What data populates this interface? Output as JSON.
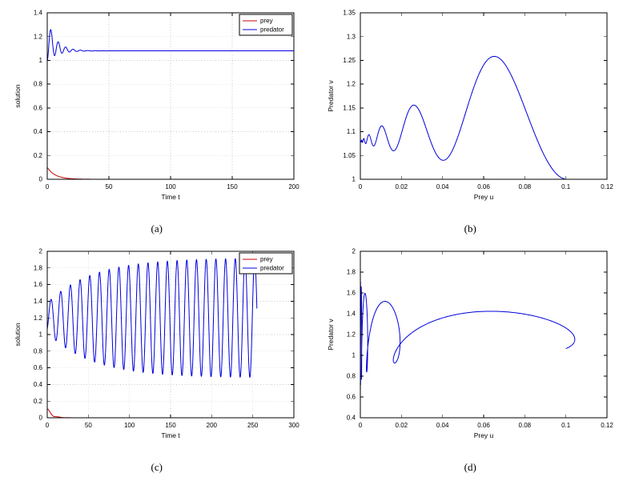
{
  "page": {
    "background": "#ffffff"
  },
  "colors": {
    "prey": "#cc0000",
    "predator": "#0000dd",
    "axis": "#000000",
    "grid": "#c8c8c8"
  },
  "chart_data": [
    {
      "type": "line",
      "caption": "(a)",
      "xlabel": "Time t",
      "ylabel": "solution",
      "xlim": [
        0,
        200
      ],
      "ylim": [
        0,
        1.4
      ],
      "xticks": [
        0,
        50,
        100,
        150,
        200
      ],
      "xtick_labels": [
        "0",
        "50",
        "100",
        "150",
        "200"
      ],
      "yticks": [
        0,
        0.2,
        0.4,
        0.6,
        0.8,
        1,
        1.2,
        1.4
      ],
      "ytick_labels": [
        "0",
        "0.2",
        "0.4",
        "0.6",
        "0.8",
        "1",
        "1.2",
        "1.4"
      ],
      "grid": true,
      "legend": {
        "position": "top-right",
        "entries": [
          {
            "label": "prey",
            "color_key": "prey"
          },
          {
            "label": "predator",
            "color_key": "predator"
          }
        ]
      },
      "series": [
        {
          "name": "prey",
          "color_key": "prey",
          "t_range": [
            0,
            200
          ],
          "samples": 600,
          "y_fn": {
            "type": "exp_osc_decay",
            "a0": 0.1,
            "tau": 6.5,
            "m": 0,
            "T": 6,
            "phi": 0
          },
          "description": "prey u(t) decays from 0.1 to ~0 by t=30 and stays at 0"
        },
        {
          "name": "predator",
          "color_key": "predator",
          "t_range": [
            0,
            200
          ],
          "samples": 2600,
          "y_fn": {
            "type": "env_osc",
            "base": 1.08,
            "cU": 0.2696,
            "tauU": 7.03,
            "cL": 0.08,
            "tauL": 8.66,
            "T": 6,
            "phi": -1.5708
          },
          "description": "predator v(t): damped oscillation starting at 1.0, peaks 1.26/1.155/1.11, dips 1.04/1.06, settles at 1.08"
        }
      ]
    },
    {
      "type": "line",
      "caption": "(b)",
      "xlabel": "Prey u",
      "ylabel": "Predator v",
      "xlim": [
        0,
        0.12
      ],
      "ylim": [
        1,
        1.35
      ],
      "xticks": [
        0,
        0.02,
        0.04,
        0.06,
        0.08,
        0.1,
        0.12
      ],
      "xtick_labels": [
        "0",
        "0.02",
        "0.04",
        "0.06",
        "0.08",
        "0.1",
        "0.12"
      ],
      "yticks": [
        1,
        1.05,
        1.1,
        1.15,
        1.2,
        1.25,
        1.3,
        1.35
      ],
      "ytick_labels": [
        "1",
        "1.05",
        "1.1",
        "1.15",
        "1.2",
        "1.25",
        "1.3",
        "1.35"
      ],
      "grid": false,
      "legend": null,
      "series": [
        {
          "name": "trajectory",
          "color_key": "predator",
          "t_range": [
            0,
            60
          ],
          "samples": 2400,
          "x_fn": {
            "type": "exp_osc_decay",
            "a0": 0.1,
            "tau": 6.55,
            "m": 0,
            "T": 6,
            "phi": 0
          },
          "y_fn": {
            "type": "env_osc",
            "base": 1.08,
            "cU": 0.2696,
            "tauU": 7.03,
            "cL": 0.08,
            "tauL": 8.66,
            "T": 6,
            "phi": -1.5708
          },
          "description": "phase trajectory from (0.1, 1.0) spiraling left to (0, 1.08); largest arch peaks near (0.065, 1.256), later arches (0.03, 1.155) and (0.013, 1.11)",
          "key_points": [
            [
              0.1,
              1.0
            ],
            [
              0.065,
              1.256
            ],
            [
              0.04,
              1.04
            ],
            [
              0.03,
              1.155
            ],
            [
              0.02,
              1.06
            ],
            [
              0,
              1.08
            ]
          ]
        }
      ]
    },
    {
      "type": "line",
      "caption": "(c)",
      "xlabel": "Time t",
      "ylabel": "solution",
      "xlim": [
        0,
        300
      ],
      "ylim": [
        0,
        2
      ],
      "xticks": [
        0,
        50,
        100,
        150,
        200,
        250,
        300
      ],
      "xtick_labels": [
        "0",
        "50",
        "100",
        "150",
        "200",
        "250",
        "300"
      ],
      "yticks": [
        0,
        0.2,
        0.4,
        0.6,
        0.8,
        1,
        1.2,
        1.4,
        1.6,
        1.8,
        2
      ],
      "ytick_labels": [
        "0",
        "0.2",
        "0.4",
        "0.6",
        "0.8",
        "1",
        "1.2",
        "1.4",
        "1.6",
        "1.8",
        "2"
      ],
      "grid": true,
      "legend": {
        "position": "top-right",
        "entries": [
          {
            "label": "prey",
            "color_key": "prey"
          },
          {
            "label": "predator",
            "color_key": "predator"
          }
        ]
      },
      "series": [
        {
          "name": "prey",
          "color_key": "prey",
          "t_range": [
            0,
            300
          ],
          "samples": 700,
          "y_fn": {
            "type": "exp_osc_decay",
            "a0": 0.1,
            "tau": 5.5,
            "m": 0.3,
            "T": 11.8,
            "phi": 0.3
          },
          "description": "prey u(t) decays from ~0.1 to 0 by t=30"
        },
        {
          "name": "predator",
          "color_key": "predator",
          "t_range": [
            0,
            255
          ],
          "samples": 2600,
          "y_fn": {
            "type": "grow_osc",
            "base": 1.2,
            "a0": 0.18,
            "aMax": 0.72,
            "tau": 55,
            "T": 11.8,
            "phi": -0.85
          },
          "description": "predator v(t): oscillation about 1.2 with amplitude growing from ~0.18 to ~0.7 (envelope 0.5 to 1.9), ~22 cycles, stops at t=255"
        }
      ]
    },
    {
      "type": "line",
      "caption": "(d)",
      "xlabel": "Prey u",
      "ylabel": "Predator v",
      "xlim": [
        0,
        0.12
      ],
      "ylim": [
        0.4,
        2
      ],
      "xticks": [
        0,
        0.02,
        0.04,
        0.06,
        0.08,
        0.1,
        0.12
      ],
      "xtick_labels": [
        "0",
        "0.02",
        "0.04",
        "0.06",
        "0.08",
        "0.1",
        "0.12"
      ],
      "yticks": [
        0.4,
        0.6,
        0.8,
        1,
        1.2,
        1.4,
        1.6,
        1.8,
        2
      ],
      "ytick_labels": [
        "0.4",
        "0.6",
        "0.8",
        "1",
        "1.2",
        "1.4",
        "1.6",
        "1.8",
        "2"
      ],
      "grid": false,
      "legend": null,
      "series": [
        {
          "name": "trajectory",
          "color_key": "predator",
          "t_range": [
            0,
            100
          ],
          "samples": 3000,
          "x_fn": {
            "type": "exp_osc_decay",
            "a0": 0.1,
            "tau": 7,
            "m": 0.4,
            "T": 11.8,
            "phi": 0
          },
          "y_fn": {
            "type": "grow_osc",
            "base": 1.2,
            "a0": 0.18,
            "aMax": 0.72,
            "tau": 55,
            "T": 11.8,
            "phi": -0.85
          },
          "description": "phase trajectory from (0.1, ~1.05): wide arc peaking near (0.06, 1.4), then shrinking loops near u=0.01-0.03, ending in tall vertical oscillations at u~0 spanning v ~0.55 to 1.8",
          "key_points": [
            [
              0.1,
              1.05
            ],
            [
              0.06,
              1.4
            ],
            [
              0.03,
              1.0
            ],
            [
              0.015,
              1.45
            ],
            [
              0,
              0.55
            ],
            [
              0,
              1.8
            ]
          ]
        }
      ]
    }
  ]
}
